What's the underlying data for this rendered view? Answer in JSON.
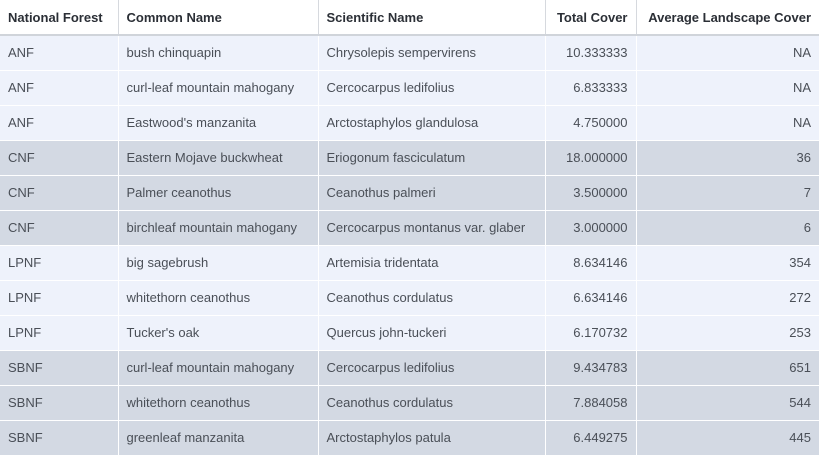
{
  "table": {
    "columns": [
      "National Forest",
      "Common Name",
      "Scientific Name",
      "Total Cover",
      "Average Landscape Cover"
    ],
    "rows": [
      {
        "forest": "ANF",
        "common": "bush chinquapin",
        "scientific": "Chrysolepis sempervirens",
        "total": "10.333333",
        "avg": "NA",
        "shade": "light"
      },
      {
        "forest": "ANF",
        "common": "curl-leaf mountain mahogany",
        "scientific": "Cercocarpus ledifolius",
        "total": "6.833333",
        "avg": "NA",
        "shade": "light"
      },
      {
        "forest": "ANF",
        "common": "Eastwood's manzanita",
        "scientific": "Arctostaphylos glandulosa",
        "total": "4.750000",
        "avg": "NA",
        "shade": "light"
      },
      {
        "forest": "CNF",
        "common": "Eastern Mojave buckwheat",
        "scientific": "Eriogonum fasciculatum",
        "total": "18.000000",
        "avg": "36",
        "shade": "dark"
      },
      {
        "forest": "CNF",
        "common": "Palmer ceanothus",
        "scientific": "Ceanothus palmeri",
        "total": "3.500000",
        "avg": "7",
        "shade": "dark"
      },
      {
        "forest": "CNF",
        "common": "birchleaf mountain mahogany",
        "scientific": "Cercocarpus montanus var. glaber",
        "total": "3.000000",
        "avg": "6",
        "shade": "dark"
      },
      {
        "forest": "LPNF",
        "common": "big sagebrush",
        "scientific": "Artemisia tridentata",
        "total": "8.634146",
        "avg": "354",
        "shade": "light"
      },
      {
        "forest": "LPNF",
        "common": "whitethorn ceanothus",
        "scientific": "Ceanothus cordulatus",
        "total": "6.634146",
        "avg": "272",
        "shade": "light"
      },
      {
        "forest": "LPNF",
        "common": "Tucker's oak",
        "scientific": "Quercus john-tuckeri",
        "total": "6.170732",
        "avg": "253",
        "shade": "light"
      },
      {
        "forest": "SBNF",
        "common": "curl-leaf mountain mahogany",
        "scientific": "Cercocarpus ledifolius",
        "total": "9.434783",
        "avg": "651",
        "shade": "dark"
      },
      {
        "forest": "SBNF",
        "common": "whitethorn ceanothus",
        "scientific": "Ceanothus cordulatus",
        "total": "7.884058",
        "avg": "544",
        "shade": "dark"
      },
      {
        "forest": "SBNF",
        "common": "greenleaf manzanita",
        "scientific": "Arctostaphylos patula",
        "total": "6.449275",
        "avg": "445",
        "shade": "dark"
      }
    ]
  },
  "colors": {
    "light_row": "#eef2fb",
    "dark_row": "#d3d9e3",
    "header_bg": "#ffffff"
  }
}
